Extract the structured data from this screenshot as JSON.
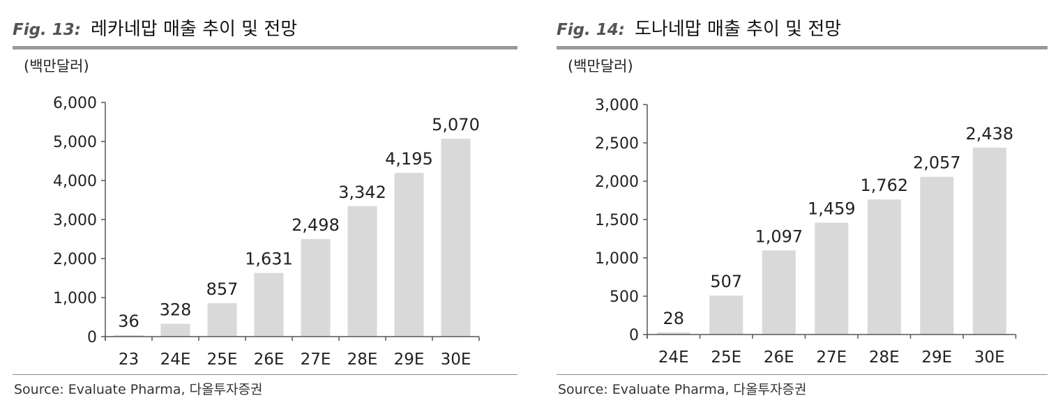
{
  "figures": [
    {
      "fig_no": "Fig. 13:",
      "title": "레카네맙 매출 추이 및 전망",
      "source": "Source: Evaluate Pharma, 다올투자증권",
      "chart_data": {
        "type": "bar",
        "title": "레카네맙 매출 추이 및 전망",
        "unit_label": "(백만달러)",
        "categories": [
          "23",
          "24E",
          "25E",
          "26E",
          "27E",
          "28E",
          "29E",
          "30E"
        ],
        "values": [
          36,
          328,
          857,
          1631,
          2498,
          3342,
          4195,
          5070
        ],
        "value_labels": [
          "36",
          "328",
          "857",
          "1,631",
          "2,498",
          "3,342",
          "4,195",
          "5,070"
        ],
        "ylim": [
          0,
          6000
        ],
        "yticks": [
          0,
          1000,
          2000,
          3000,
          4000,
          5000,
          6000
        ],
        "ytick_labels": [
          "0",
          "1,000",
          "2,000",
          "3,000",
          "4,000",
          "5,000",
          "6,000"
        ],
        "bar_color": "#d9d9d9",
        "grid": false,
        "legend": "none"
      }
    },
    {
      "fig_no": "Fig. 14:",
      "title": "도나네맙 매출 추이 및 전망",
      "source": "Source: Evaluate Pharma, 다올투자증권",
      "chart_data": {
        "type": "bar",
        "title": "도나네맙 매출 추이 및 전망",
        "unit_label": "(백만달러)",
        "categories": [
          "24E",
          "25E",
          "26E",
          "27E",
          "28E",
          "29E",
          "30E"
        ],
        "values": [
          28,
          507,
          1097,
          1459,
          1762,
          2057,
          2438
        ],
        "value_labels": [
          "28",
          "507",
          "1,097",
          "1,459",
          "1,762",
          "2,057",
          "2,438"
        ],
        "ylim": [
          0,
          3000
        ],
        "yticks": [
          0,
          500,
          1000,
          1500,
          2000,
          2500,
          3000
        ],
        "ytick_labels": [
          "0",
          "500",
          "1,000",
          "1,500",
          "2,000",
          "2,500",
          "3,000"
        ],
        "bar_color": "#d9d9d9",
        "grid": false,
        "legend": "none"
      }
    }
  ]
}
